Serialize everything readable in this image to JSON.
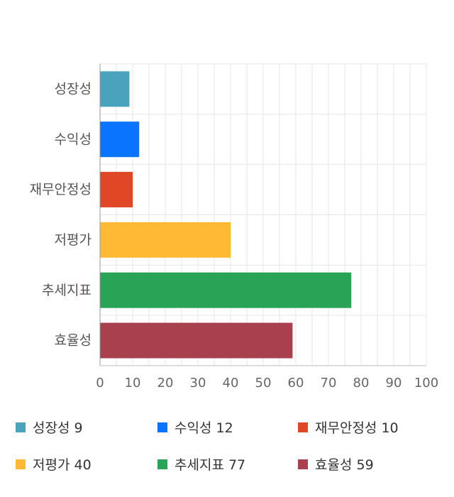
{
  "chart_data": {
    "type": "bar",
    "orientation": "horizontal",
    "categories": [
      "성장성",
      "수익성",
      "재무안정성",
      "저평가",
      "추세지표",
      "효율성"
    ],
    "values": [
      9,
      12,
      10,
      40,
      77,
      59
    ],
    "colors": [
      "#4aa3bd",
      "#0a74ff",
      "#e04727",
      "#ffb934",
      "#29a456",
      "#a8414d"
    ],
    "xlim": [
      0,
      100
    ],
    "xticks": [
      0,
      10,
      20,
      30,
      40,
      50,
      60,
      70,
      80,
      90,
      100
    ],
    "tick_labels": [
      "0",
      "10",
      "20",
      "30",
      "40",
      "50",
      "60",
      "70",
      "80",
      "90",
      "100"
    ],
    "grid": true,
    "legend_position": "bottom"
  },
  "legend": [
    {
      "label": "성장성 9",
      "color": "#4aa3bd"
    },
    {
      "label": "수익성 12",
      "color": "#0a74ff"
    },
    {
      "label": "재무안정성 10",
      "color": "#e04727"
    },
    {
      "label": "저평가 40",
      "color": "#ffb934"
    },
    {
      "label": "추세지표 77",
      "color": "#29a456"
    },
    {
      "label": "효율성 59",
      "color": "#a8414d"
    }
  ]
}
